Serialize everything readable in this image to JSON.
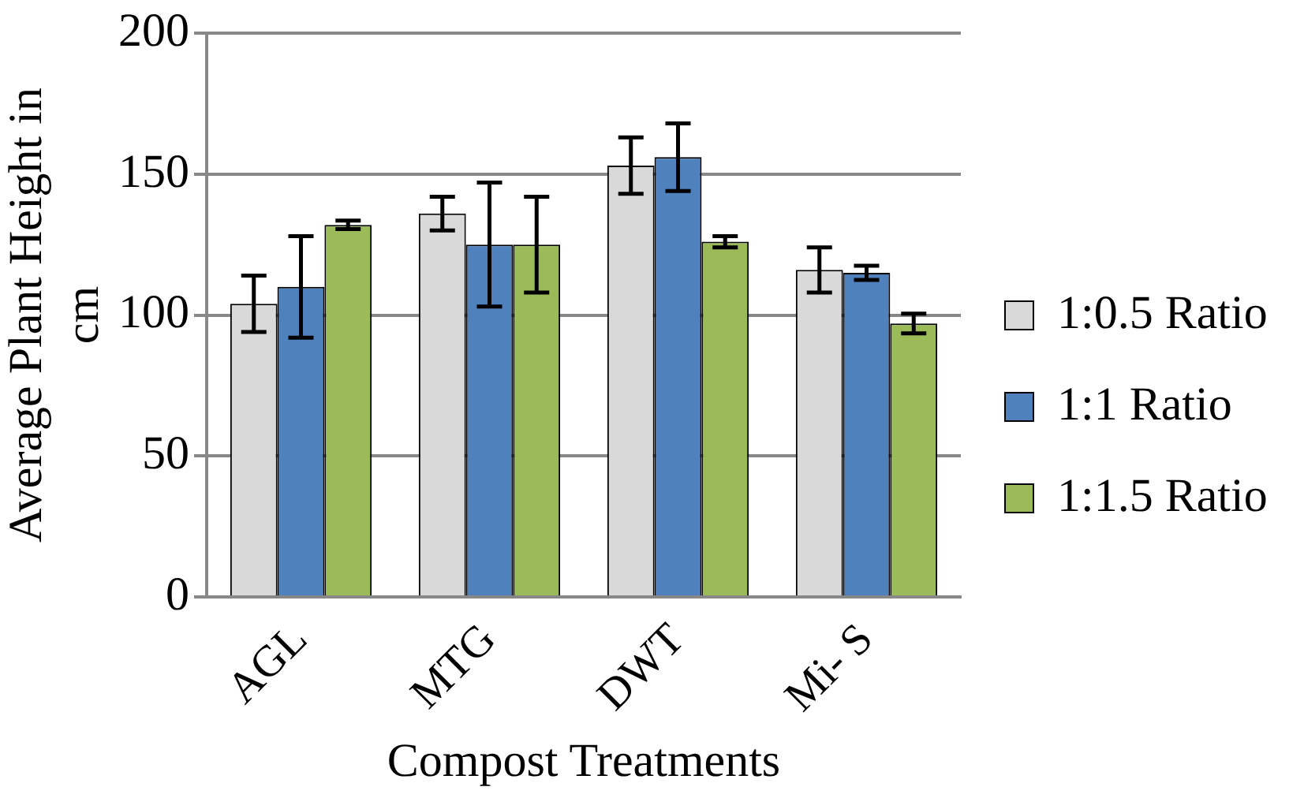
{
  "chart_data": {
    "type": "bar",
    "xlabel": "Compost Treatments",
    "ylabel": "Average Plant Height in cm",
    "categories": [
      "AGL",
      "MTG",
      "DWT",
      "Mi- S"
    ],
    "series": [
      {
        "name": "1:0.5 Ratio",
        "color": "#d9d9d9",
        "values": [
          104,
          136,
          153,
          116
        ],
        "errors": [
          10,
          6,
          10,
          8
        ]
      },
      {
        "name": "1:1 Ratio",
        "color": "#4f81bd",
        "values": [
          110,
          125,
          156,
          115
        ],
        "errors": [
          18,
          22,
          12,
          2.5
        ]
      },
      {
        "name": "1:1.5 Ratio",
        "color": "#9bbb59",
        "values": [
          132,
          125,
          126,
          97
        ],
        "errors": [
          1.5,
          17,
          2,
          3.5
        ]
      }
    ],
    "ylim": [
      0,
      200
    ],
    "yticks": [
      0,
      50,
      100,
      150,
      200
    ],
    "grid": "y",
    "legend": "right"
  }
}
